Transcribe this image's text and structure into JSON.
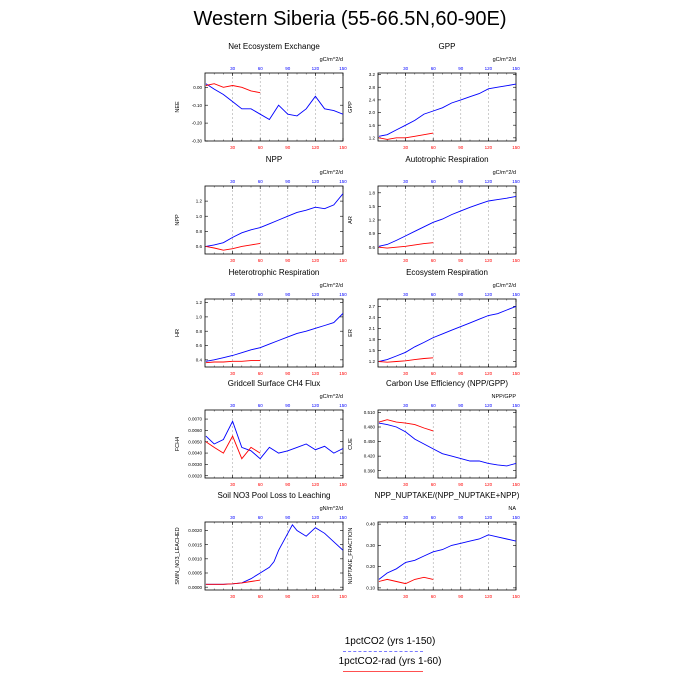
{
  "page": {
    "title": "Western Siberia (55-66.5N,60-90E)"
  },
  "legend": {
    "items": [
      {
        "label": "1pctCO2 (yrs 1-150)",
        "color": "#0000ff",
        "style": "dashed"
      },
      {
        "label": "1pctCO2-rad (yrs 1-60)",
        "color": "#ff0000",
        "style": "solid"
      }
    ]
  },
  "chart_data": [
    {
      "type": "line",
      "title": "Net Ecosystem Exchange",
      "ylabel": "NEE",
      "units": "gC/m^2/d",
      "xlim": [
        0,
        150
      ],
      "ylim": [
        -0.3,
        0.08
      ],
      "yticks": [
        -0.3,
        -0.2,
        -0.1,
        0.0
      ],
      "ytick_labels": [
        "-0.30",
        "-0.20",
        "-0.10",
        "0.00"
      ],
      "bottom_ticks": [
        30,
        60,
        90,
        120,
        150
      ],
      "top_ticks": [
        30,
        60,
        90,
        120,
        150
      ],
      "series": [
        {
          "name": "1pctCO2 (yrs 1-150)",
          "color": "#0000ff",
          "x": [
            1,
            10,
            20,
            30,
            40,
            50,
            60,
            70,
            80,
            90,
            100,
            110,
            120,
            130,
            140,
            150
          ],
          "y": [
            0.02,
            -0.01,
            -0.04,
            -0.08,
            -0.12,
            -0.12,
            -0.15,
            -0.18,
            -0.1,
            -0.15,
            -0.16,
            -0.12,
            -0.05,
            -0.12,
            -0.13,
            -0.15
          ]
        },
        {
          "name": "1pctCO2-rad (yrs 1-60)",
          "color": "#ff0000",
          "x": [
            1,
            10,
            20,
            30,
            40,
            50,
            60
          ],
          "y": [
            0.01,
            0.02,
            0.0,
            0.01,
            0.0,
            -0.02,
            -0.03
          ]
        }
      ]
    },
    {
      "type": "line",
      "title": "GPP",
      "ylabel": "GPP",
      "units": "gC/m^2/d",
      "xlim": [
        0,
        150
      ],
      "ylim": [
        1.1,
        3.25
      ],
      "yticks": [
        1.2,
        1.6,
        2.0,
        2.4,
        2.8,
        3.2
      ],
      "ytick_labels": [
        "1.2",
        "1.6",
        "2.0",
        "2.4",
        "2.8",
        "3.2"
      ],
      "bottom_ticks": [
        30,
        60,
        90,
        120,
        150
      ],
      "top_ticks": [
        30,
        60,
        90,
        120,
        150
      ],
      "series": [
        {
          "name": "1pctCO2 (yrs 1-150)",
          "color": "#0000ff",
          "x": [
            1,
            10,
            20,
            30,
            40,
            50,
            60,
            70,
            80,
            90,
            100,
            110,
            120,
            130,
            140,
            150
          ],
          "y": [
            1.25,
            1.3,
            1.45,
            1.6,
            1.75,
            1.95,
            2.05,
            2.15,
            2.3,
            2.4,
            2.5,
            2.6,
            2.75,
            2.8,
            2.85,
            2.9
          ]
        },
        {
          "name": "1pctCO2-rad (yrs 1-60)",
          "color": "#ff0000",
          "x": [
            1,
            10,
            20,
            30,
            40,
            50,
            60
          ],
          "y": [
            1.2,
            1.15,
            1.2,
            1.2,
            1.25,
            1.3,
            1.35
          ]
        }
      ]
    },
    {
      "type": "line",
      "title": "NPP",
      "ylabel": "NPP",
      "units": "gC/m^2/d",
      "xlim": [
        0,
        150
      ],
      "ylim": [
        0.5,
        1.4
      ],
      "yticks": [
        0.6,
        0.8,
        1.0,
        1.2
      ],
      "ytick_labels": [
        "0.6",
        "0.8",
        "1.0",
        "1.2"
      ],
      "bottom_ticks": [
        30,
        60,
        90,
        120,
        150
      ],
      "top_ticks": [
        30,
        60,
        90,
        120,
        150
      ],
      "series": [
        {
          "name": "1pctCO2 (yrs 1-150)",
          "color": "#0000ff",
          "x": [
            1,
            10,
            20,
            30,
            40,
            50,
            60,
            70,
            80,
            90,
            100,
            110,
            120,
            130,
            140,
            150
          ],
          "y": [
            0.6,
            0.62,
            0.65,
            0.72,
            0.78,
            0.82,
            0.85,
            0.9,
            0.95,
            1.0,
            1.05,
            1.08,
            1.12,
            1.1,
            1.15,
            1.3
          ]
        },
        {
          "name": "1pctCO2-rad (yrs 1-60)",
          "color": "#ff0000",
          "x": [
            1,
            10,
            20,
            30,
            40,
            50,
            60
          ],
          "y": [
            0.6,
            0.58,
            0.55,
            0.57,
            0.6,
            0.62,
            0.64
          ]
        }
      ]
    },
    {
      "type": "line",
      "title": "Autotrophic Respiration",
      "ylabel": "AR",
      "units": "gC/m^2/d",
      "xlim": [
        0,
        150
      ],
      "ylim": [
        0.45,
        1.95
      ],
      "yticks": [
        0.6,
        0.9,
        1.2,
        1.5,
        1.8
      ],
      "ytick_labels": [
        "0.6",
        "0.9",
        "1.2",
        "1.5",
        "1.8"
      ],
      "bottom_ticks": [
        30,
        60,
        90,
        120,
        150
      ],
      "top_ticks": [
        30,
        60,
        90,
        120,
        150
      ],
      "series": [
        {
          "name": "1pctCO2 (yrs 1-150)",
          "color": "#0000ff",
          "x": [
            1,
            10,
            20,
            30,
            40,
            50,
            60,
            70,
            80,
            90,
            100,
            110,
            120,
            130,
            140,
            150
          ],
          "y": [
            0.62,
            0.66,
            0.75,
            0.85,
            0.95,
            1.05,
            1.15,
            1.22,
            1.32,
            1.4,
            1.48,
            1.55,
            1.62,
            1.65,
            1.68,
            1.72
          ]
        },
        {
          "name": "1pctCO2-rad (yrs 1-60)",
          "color": "#ff0000",
          "x": [
            1,
            10,
            20,
            30,
            40,
            50,
            60
          ],
          "y": [
            0.6,
            0.58,
            0.6,
            0.62,
            0.65,
            0.68,
            0.7
          ]
        }
      ]
    },
    {
      "type": "line",
      "title": "Heterotrophic Respiration",
      "ylabel": "HR",
      "units": "gC/m^2/d",
      "xlim": [
        0,
        150
      ],
      "ylim": [
        0.3,
        1.25
      ],
      "yticks": [
        0.4,
        0.6,
        0.8,
        1.0,
        1.2
      ],
      "ytick_labels": [
        "0.4",
        "0.6",
        "0.8",
        "1.0",
        "1.2"
      ],
      "bottom_ticks": [
        30,
        60,
        90,
        120,
        150
      ],
      "top_ticks": [
        30,
        60,
        90,
        120,
        150
      ],
      "series": [
        {
          "name": "1pctCO2 (yrs 1-150)",
          "color": "#0000ff",
          "x": [
            1,
            10,
            20,
            30,
            40,
            50,
            60,
            70,
            80,
            90,
            100,
            110,
            120,
            130,
            140,
            150
          ],
          "y": [
            0.38,
            0.4,
            0.43,
            0.46,
            0.5,
            0.54,
            0.57,
            0.62,
            0.67,
            0.72,
            0.77,
            0.8,
            0.84,
            0.88,
            0.92,
            1.05
          ]
        },
        {
          "name": "1pctCO2-rad (yrs 1-60)",
          "color": "#ff0000",
          "x": [
            1,
            10,
            20,
            30,
            40,
            50,
            60
          ],
          "y": [
            0.36,
            0.37,
            0.37,
            0.38,
            0.38,
            0.39,
            0.39
          ]
        }
      ]
    },
    {
      "type": "line",
      "title": "Ecosystem Respiration",
      "ylabel": "ER",
      "units": "gC/m^2/d",
      "xlim": [
        0,
        150
      ],
      "ylim": [
        1.05,
        2.9
      ],
      "yticks": [
        1.2,
        1.5,
        1.8,
        2.1,
        2.4,
        2.7
      ],
      "ytick_labels": [
        "1.2",
        "1.5",
        "1.8",
        "2.1",
        "2.4",
        "2.7"
      ],
      "bottom_ticks": [
        30,
        60,
        90,
        120,
        150
      ],
      "top_ticks": [
        30,
        60,
        90,
        120,
        150
      ],
      "series": [
        {
          "name": "1pctCO2 (yrs 1-150)",
          "color": "#0000ff",
          "x": [
            1,
            10,
            20,
            30,
            40,
            50,
            60,
            70,
            80,
            90,
            100,
            110,
            120,
            130,
            140,
            150
          ],
          "y": [
            1.2,
            1.25,
            1.35,
            1.45,
            1.6,
            1.72,
            1.85,
            1.95,
            2.05,
            2.15,
            2.25,
            2.35,
            2.45,
            2.5,
            2.6,
            2.7
          ]
        },
        {
          "name": "1pctCO2-rad (yrs 1-60)",
          "color": "#ff0000",
          "x": [
            1,
            10,
            20,
            30,
            40,
            50,
            60
          ],
          "y": [
            1.2,
            1.18,
            1.2,
            1.22,
            1.25,
            1.28,
            1.3
          ]
        }
      ]
    },
    {
      "type": "line",
      "title": "Gridcell Surface CH4 Flux",
      "ylabel": "FCH4",
      "units": "gC/m^2/d",
      "xlim": [
        0,
        150
      ],
      "ylim": [
        0.0018,
        0.0078
      ],
      "yticks": [
        0.002,
        0.003,
        0.004,
        0.005,
        0.006,
        0.007
      ],
      "ytick_labels": [
        "0.0020",
        "0.0030",
        "0.0040",
        "0.0050",
        "0.0060",
        "0.0070"
      ],
      "bottom_ticks": [
        30,
        60,
        90,
        120,
        150
      ],
      "top_ticks": [
        30,
        60,
        90,
        120,
        150
      ],
      "series": [
        {
          "name": "1pctCO2 (yrs 1-150)",
          "color": "#0000ff",
          "x": [
            1,
            10,
            20,
            30,
            40,
            50,
            60,
            70,
            80,
            90,
            100,
            110,
            120,
            130,
            140,
            150
          ],
          "y": [
            0.0055,
            0.0048,
            0.0052,
            0.0068,
            0.0045,
            0.0042,
            0.0035,
            0.0045,
            0.004,
            0.0042,
            0.0045,
            0.0048,
            0.0043,
            0.0046,
            0.004,
            0.0044
          ]
        },
        {
          "name": "1pctCO2-rad (yrs 1-60)",
          "color": "#ff0000",
          "x": [
            1,
            10,
            20,
            30,
            40,
            50,
            60
          ],
          "y": [
            0.005,
            0.0045,
            0.004,
            0.0055,
            0.0035,
            0.0045,
            0.004
          ]
        }
      ]
    },
    {
      "type": "line",
      "title": "Carbon Use Efficiency (NPP/GPP)",
      "ylabel": "CUE",
      "units": "NPP/GPP",
      "xlim": [
        0,
        150
      ],
      "ylim": [
        0.375,
        0.515
      ],
      "yticks": [
        0.39,
        0.42,
        0.45,
        0.48,
        0.51
      ],
      "ytick_labels": [
        "0.390",
        "0.420",
        "0.450",
        "0.480",
        "0.510"
      ],
      "bottom_ticks": [
        30,
        60,
        90,
        120,
        150
      ],
      "top_ticks": [
        30,
        60,
        90,
        120,
        150
      ],
      "series": [
        {
          "name": "1pctCO2 (yrs 1-150)",
          "color": "#0000ff",
          "x": [
            1,
            10,
            20,
            30,
            40,
            50,
            60,
            70,
            80,
            90,
            100,
            110,
            120,
            130,
            140,
            150
          ],
          "y": [
            0.488,
            0.485,
            0.48,
            0.47,
            0.455,
            0.445,
            0.435,
            0.425,
            0.42,
            0.415,
            0.41,
            0.41,
            0.405,
            0.402,
            0.4,
            0.405
          ]
        },
        {
          "name": "1pctCO2-rad (yrs 1-60)",
          "color": "#ff0000",
          "x": [
            1,
            10,
            20,
            30,
            40,
            50,
            60
          ],
          "y": [
            0.49,
            0.495,
            0.49,
            0.488,
            0.485,
            0.478,
            0.472
          ]
        }
      ]
    },
    {
      "type": "line",
      "title": "Soil NO3 Pool Loss to Leaching",
      "ylabel": "SMIN_NO3_LEACHED",
      "units": "gN/m^2/d",
      "xlim": [
        0,
        150
      ],
      "ylim": [
        -0.0001,
        0.0023
      ],
      "yticks": [
        0.0,
        0.0005,
        0.001,
        0.0015,
        0.002
      ],
      "ytick_labels": [
        "0.0000",
        "0.0005",
        "0.0010",
        "0.0015",
        "0.0020"
      ],
      "bottom_ticks": [
        30,
        60,
        90,
        120,
        150
      ],
      "top_ticks": [
        30,
        60,
        90,
        120,
        150
      ],
      "series": [
        {
          "name": "1pctCO2 (yrs 1-150)",
          "color": "#0000ff",
          "x": [
            1,
            10,
            20,
            30,
            40,
            50,
            60,
            70,
            75,
            80,
            85,
            90,
            95,
            100,
            110,
            120,
            130,
            140,
            150
          ],
          "y": [
            0.0001,
            0.0001,
            0.0001,
            0.00012,
            0.00015,
            0.0003,
            0.0005,
            0.0007,
            0.0009,
            0.0013,
            0.0016,
            0.0019,
            0.0022,
            0.002,
            0.0018,
            0.0021,
            0.0019,
            0.0016,
            0.0013
          ]
        },
        {
          "name": "1pctCO2-rad (yrs 1-60)",
          "color": "#ff0000",
          "x": [
            1,
            10,
            20,
            30,
            40,
            50,
            60
          ],
          "y": [
            0.0001,
            0.0001,
            0.0001,
            0.00012,
            0.00015,
            0.0002,
            0.00025
          ]
        }
      ]
    },
    {
      "type": "line",
      "title": "NPP_NUPTAKE/(NPP_NUPTAKE+NPP)",
      "ylabel": "NUPTAKE_FRACTION",
      "units": "NA",
      "xlim": [
        0,
        150
      ],
      "ylim": [
        0.09,
        0.41
      ],
      "yticks": [
        0.1,
        0.2,
        0.3,
        0.4
      ],
      "ytick_labels": [
        "0.10",
        "0.20",
        "0.30",
        "0.40"
      ],
      "bottom_ticks": [
        30,
        60,
        90,
        120,
        150
      ],
      "top_ticks": [
        30,
        60,
        90,
        120,
        150
      ],
      "series": [
        {
          "name": "1pctCO2 (yrs 1-150)",
          "color": "#0000ff",
          "x": [
            1,
            10,
            20,
            30,
            40,
            50,
            60,
            70,
            80,
            90,
            100,
            110,
            120,
            130,
            140,
            150
          ],
          "y": [
            0.14,
            0.17,
            0.19,
            0.22,
            0.23,
            0.25,
            0.27,
            0.28,
            0.3,
            0.31,
            0.32,
            0.33,
            0.35,
            0.34,
            0.33,
            0.32
          ]
        },
        {
          "name": "1pctCO2-rad (yrs 1-60)",
          "color": "#ff0000",
          "x": [
            1,
            10,
            20,
            30,
            40,
            50,
            60
          ],
          "y": [
            0.13,
            0.14,
            0.13,
            0.12,
            0.14,
            0.15,
            0.14
          ]
        }
      ]
    }
  ]
}
